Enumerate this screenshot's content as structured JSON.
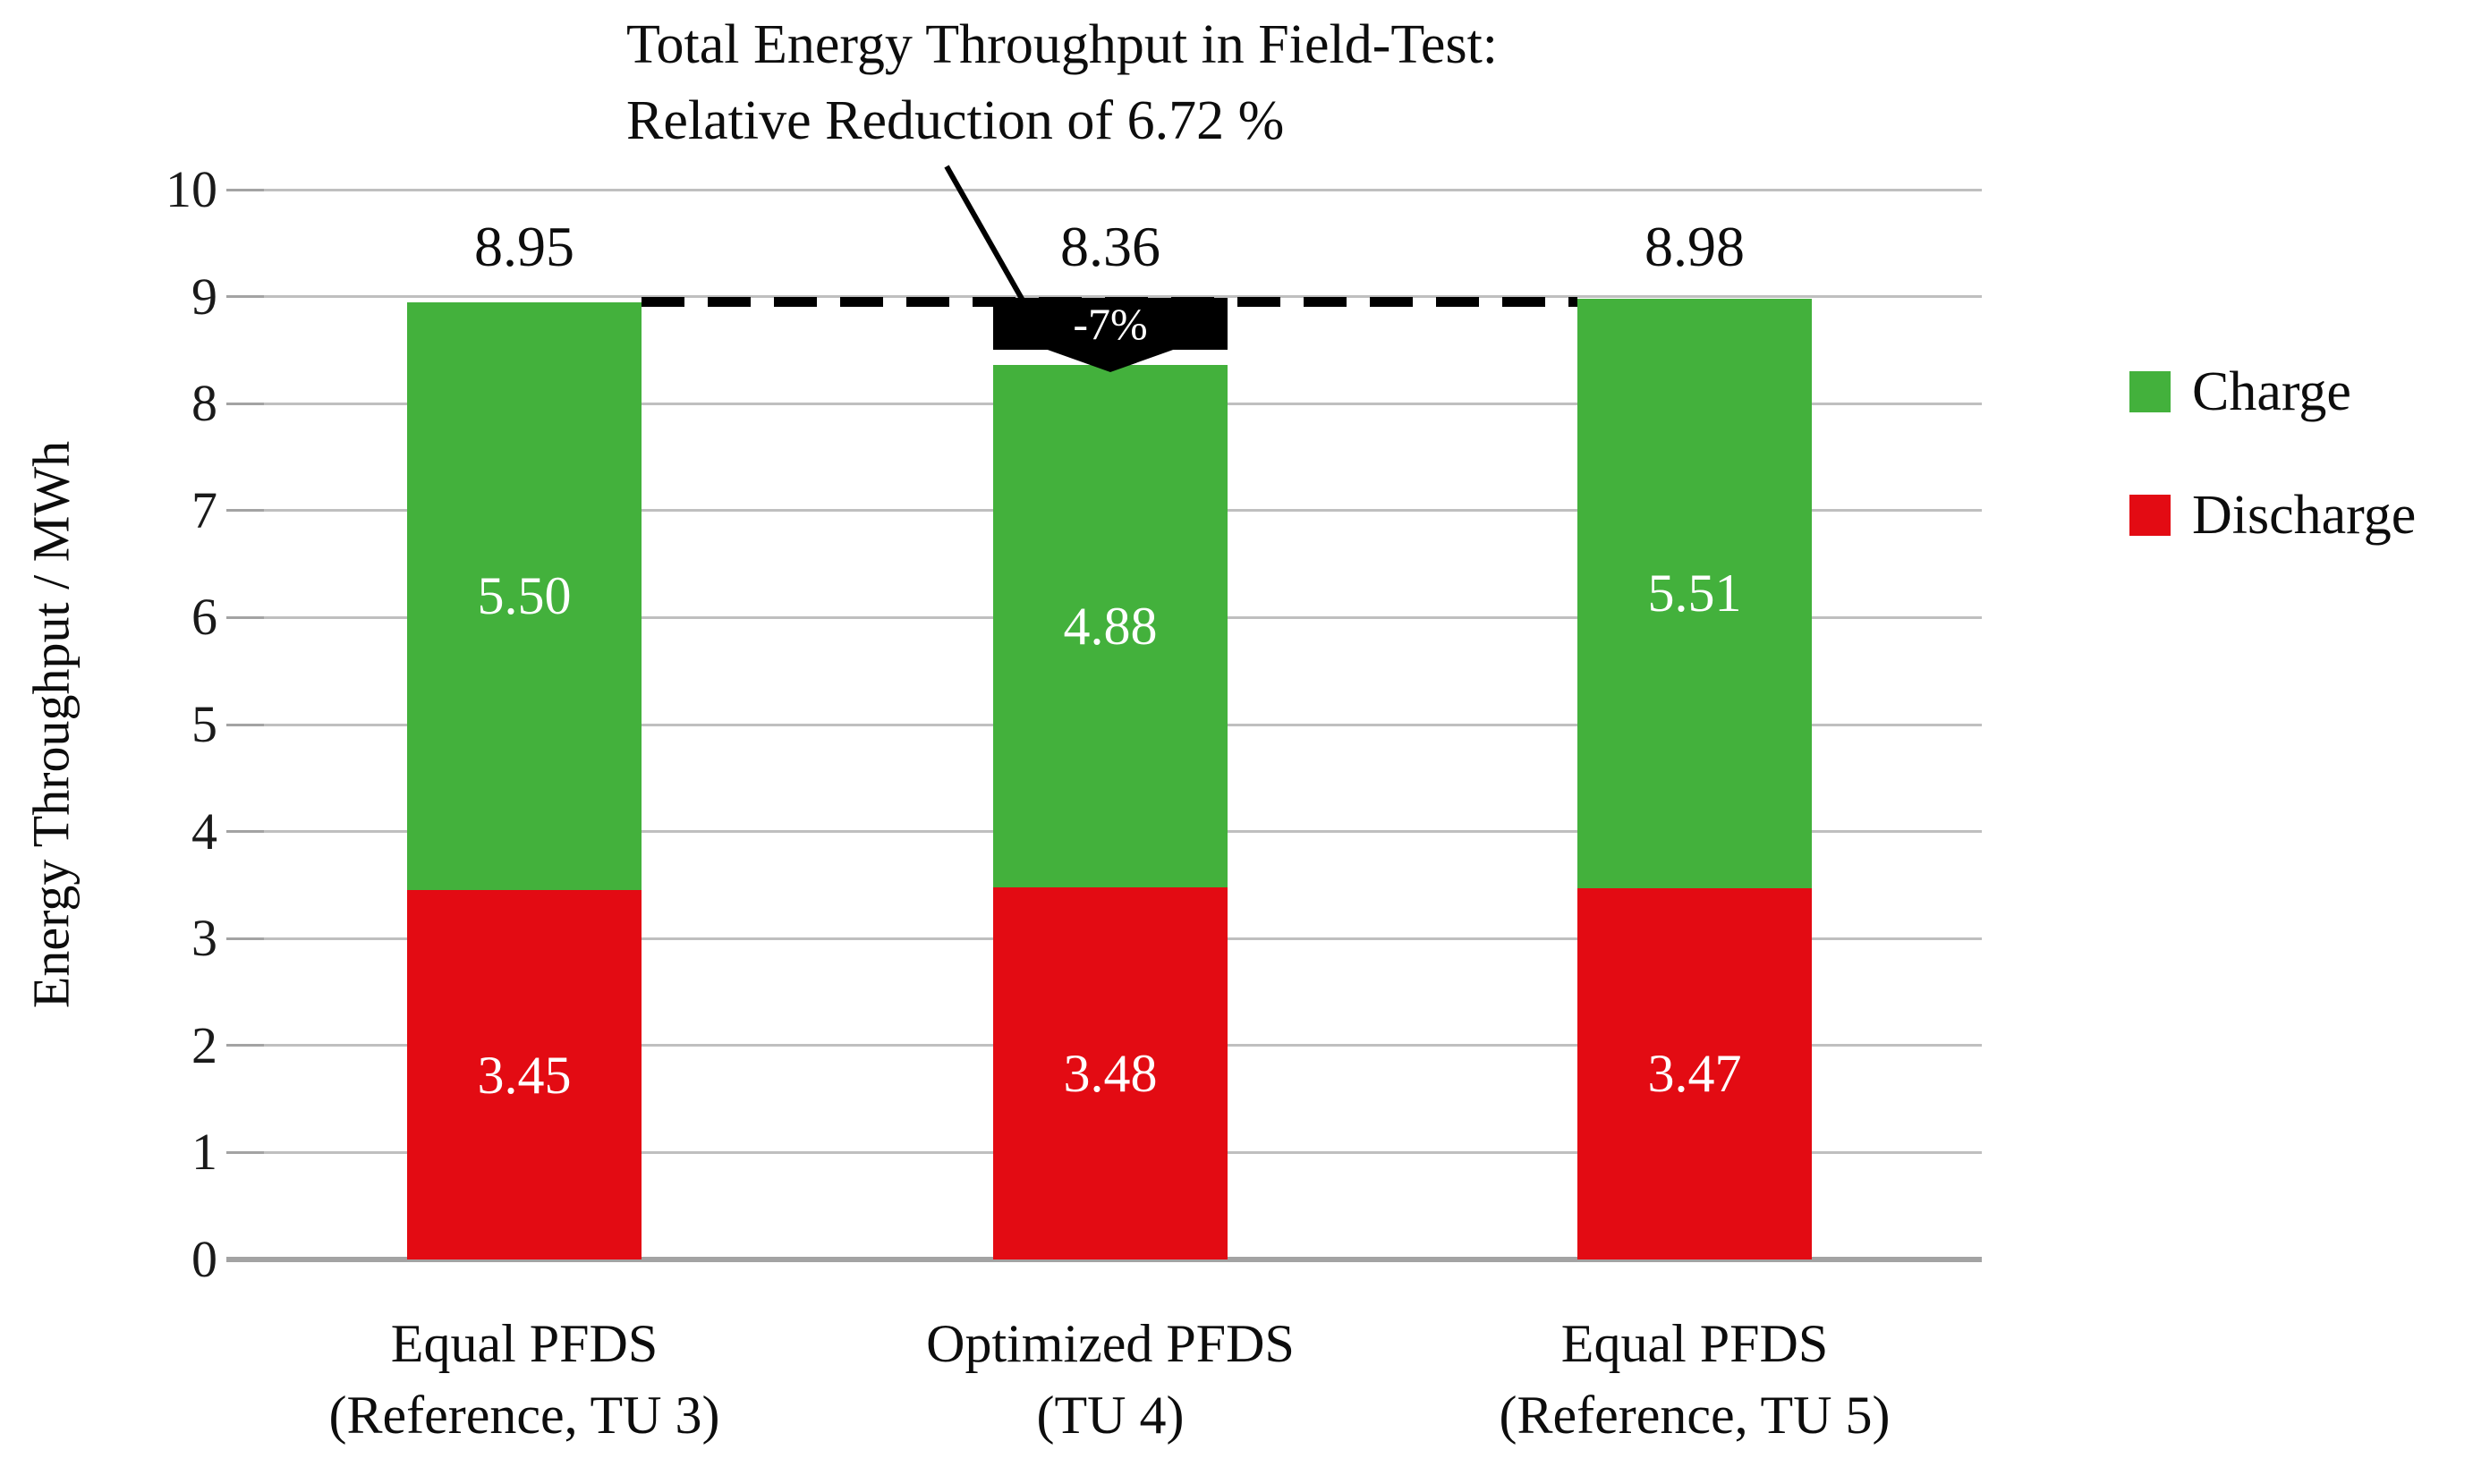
{
  "annotation": {
    "line1": "Total Energy Throughput in Field-Test:",
    "line2": "Relative Reduction of 6.72 %"
  },
  "chart_data": {
    "type": "bar",
    "stacked": true,
    "title": "Total Energy Throughput in Field-Test: Relative Reduction of 6.72 %",
    "categories": [
      [
        "Equal PFDS",
        "(Reference, TU 3)"
      ],
      [
        "Optimized PFDS",
        "(TU 4)"
      ],
      [
        "Equal PFDS",
        "(Reference, TU 5)"
      ]
    ],
    "series": [
      {
        "name": "Discharge",
        "color": "#E30B13",
        "values": [
          3.45,
          3.48,
          3.47
        ]
      },
      {
        "name": "Charge",
        "color": "#43B13C",
        "values": [
          5.5,
          4.88,
          5.51
        ]
      }
    ],
    "totals": [
      8.95,
      8.36,
      8.98
    ],
    "total_labels": [
      "8.95",
      "8.36",
      "8.98"
    ],
    "ylabel": "Energy Throughput / MWh",
    "ylim": [
      0,
      10
    ],
    "ytick_step": 1,
    "grid": true,
    "legend_position": "right",
    "legend_order": [
      "Charge",
      "Discharge"
    ],
    "callout_label": "-7%",
    "reference_level": 8.95,
    "callout_points_to": 8.36
  },
  "colors": {
    "charge": "#43B13C",
    "discharge": "#E30B13",
    "gridline": "#BFBFBF",
    "axis_line": "#A3A3A3",
    "callout_bg": "#000000",
    "callout_text": "#FFFFFF",
    "bar_label_text": "#FFFFFF",
    "text": "#111111"
  }
}
